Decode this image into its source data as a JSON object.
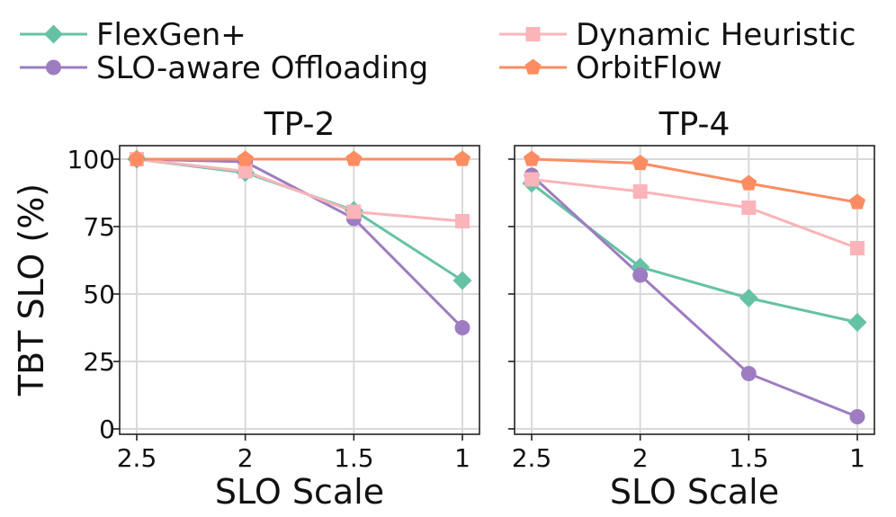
{
  "chart_data": {
    "type": "line",
    "ylabel": "TBT SLO (%)",
    "ylim": [
      -2,
      105
    ],
    "yticks": [
      0,
      25,
      50,
      75,
      100
    ],
    "x_ticks": [
      "2.5",
      "2",
      "1.5",
      "1"
    ],
    "x": [
      2.5,
      2,
      1.5,
      1
    ],
    "legend": {
      "placement": "top",
      "entries": [
        {
          "name": "FlexGen+",
          "color": "#66c2a5",
          "marker": "diamond"
        },
        {
          "name": "SLO-aware Offloading",
          "color": "#9e7cc1",
          "marker": "circle"
        },
        {
          "name": "Dynamic Heuristic",
          "color": "#fbb4b9",
          "marker": "square"
        },
        {
          "name": "OrbitFlow",
          "color": "#fc8d62",
          "marker": "pentagon"
        }
      ]
    },
    "panels": [
      {
        "title": "TP-2",
        "xlabel": "SLO Scale",
        "series": [
          {
            "name": "FlexGen+",
            "values": [
              100,
              95,
              81,
              55
            ]
          },
          {
            "name": "SLO-aware Offloading",
            "values": [
              100,
              99,
              78,
              37.5
            ]
          },
          {
            "name": "Dynamic Heuristic",
            "values": [
              100,
              95.5,
              80.5,
              77
            ]
          },
          {
            "name": "OrbitFlow",
            "values": [
              100,
              100,
              100,
              100
            ]
          }
        ]
      },
      {
        "title": "TP-4",
        "xlabel": "SLO Scale",
        "series": [
          {
            "name": "FlexGen+",
            "values": [
              91,
              60,
              48.5,
              39.5
            ]
          },
          {
            "name": "SLO-aware Offloading",
            "values": [
              94,
              57,
              20.5,
              4.5
            ]
          },
          {
            "name": "Dynamic Heuristic",
            "values": [
              92.5,
              88,
              82,
              67
            ]
          },
          {
            "name": "OrbitFlow",
            "values": [
              100,
              98.5,
              91,
              84
            ]
          }
        ]
      }
    ]
  }
}
